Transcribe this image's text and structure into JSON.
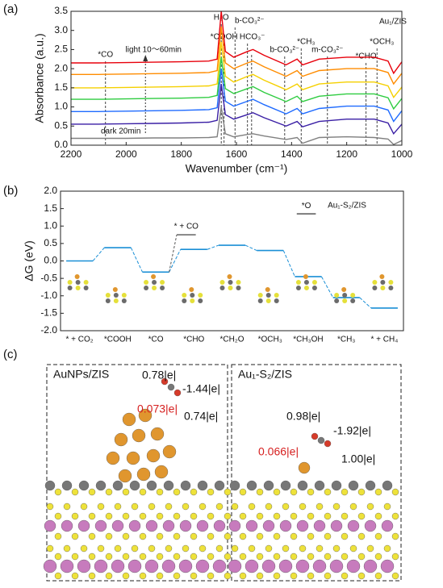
{
  "chart_data": [
    {
      "type": "line",
      "panel": "(a)",
      "x_label": "Wavenumber (cm⁻¹)",
      "y_label": "Absorbance (a.u.)",
      "xlim": [
        2200,
        1000
      ],
      "xticks": [
        2200,
        2000,
        1800,
        1600,
        1400,
        1200,
        1000
      ],
      "ylim": [
        0,
        3.5
      ],
      "yticks": [
        {
          "value": 0,
          "label": "0.0"
        },
        0.5,
        {
          "value": 1,
          "label": "1.0"
        },
        1.5,
        {
          "value": 2,
          "label": "2.0"
        },
        2.5,
        {
          "value": 3,
          "label": "3.0"
        },
        3.5
      ],
      "x": [
        2200,
        2100,
        2000,
        1900,
        1800,
        1700,
        1670,
        1655,
        1640,
        1610,
        1560,
        1540,
        1500,
        1420,
        1380,
        1360,
        1300,
        1200,
        1100,
        1050,
        1030,
        1000
      ],
      "series": [
        {
          "color": "#808080",
          "values": [
            0.18,
            0.18,
            0.18,
            0.19,
            0.19,
            0.2,
            0.22,
            1.0,
            0.3,
            0.22,
            0.28,
            0.3,
            0.24,
            0.15,
            0.2,
            0.05,
            0.2,
            0.22,
            0.2,
            0.16,
            0.02,
            0.12
          ]
        },
        {
          "color": "#3a1fa5",
          "values": [
            0.55,
            0.55,
            0.56,
            0.57,
            0.58,
            0.6,
            0.65,
            1.6,
            0.8,
            0.68,
            0.8,
            0.85,
            0.72,
            0.5,
            0.62,
            0.48,
            0.62,
            0.68,
            0.68,
            0.58,
            0.3,
            0.55
          ]
        },
        {
          "color": "#1f6bff",
          "values": [
            0.88,
            0.88,
            0.89,
            0.9,
            0.91,
            0.93,
            0.98,
            2.0,
            1.15,
            1.02,
            1.15,
            1.2,
            1.06,
            0.82,
            0.96,
            0.82,
            0.96,
            1.02,
            1.02,
            0.92,
            0.62,
            0.9
          ]
        },
        {
          "color": "#2ecc40",
          "values": [
            1.2,
            1.2,
            1.21,
            1.22,
            1.23,
            1.25,
            1.3,
            2.3,
            1.48,
            1.35,
            1.48,
            1.53,
            1.38,
            1.14,
            1.28,
            1.14,
            1.28,
            1.34,
            1.34,
            1.24,
            0.95,
            1.22
          ]
        },
        {
          "color": "#f5d000",
          "values": [
            1.5,
            1.5,
            1.51,
            1.52,
            1.53,
            1.55,
            1.6,
            2.7,
            1.8,
            1.65,
            1.8,
            1.85,
            1.7,
            1.45,
            1.6,
            1.45,
            1.6,
            1.65,
            1.65,
            1.55,
            1.25,
            1.52
          ]
        },
        {
          "color": "#ff8c00",
          "values": [
            1.85,
            1.85,
            1.86,
            1.87,
            1.88,
            1.9,
            1.95,
            3.1,
            2.15,
            2.0,
            2.15,
            2.2,
            2.05,
            1.8,
            1.95,
            1.8,
            1.95,
            2.0,
            2.0,
            1.9,
            1.6,
            1.88
          ]
        },
        {
          "color": "#e8000b",
          "values": [
            2.15,
            2.15,
            2.16,
            2.17,
            2.18,
            2.2,
            2.25,
            3.5,
            2.45,
            2.3,
            2.45,
            2.5,
            2.35,
            2.1,
            2.25,
            2.1,
            2.25,
            2.3,
            2.3,
            2.2,
            1.88,
            2.18
          ]
        }
      ],
      "markers": [
        {
          "label": "*CO",
          "x": 2075
        },
        {
          "label": "light 10～60min",
          "x": 1930
        },
        {
          "label": "H₂O",
          "x": 1655
        },
        {
          "label": "*COOH",
          "x": 1645
        },
        {
          "label": "b-CO₃²⁻",
          "x": 1605
        },
        {
          "label": "HCO₃⁻",
          "x": 1560
        },
        {
          "label": null,
          "x": 1545
        },
        {
          "label": "b-CO₃²⁻",
          "x": 1425
        },
        {
          "label": "*CH₃",
          "x": 1365
        },
        {
          "label": "m-CO₃²⁻",
          "x": 1270
        },
        {
          "label": "*CHO",
          "x": 1130
        },
        {
          "label": "*OCH₃",
          "x": 1090
        }
      ],
      "notes": {
        "dark": "dark 20min",
        "sample": "Au₁/ZIS"
      }
    },
    {
      "type": "step",
      "panel": "(b)",
      "y_label": "ΔG (eV)",
      "title": "Au₁-S₂/ZIS",
      "ylim": [
        -2,
        2
      ],
      "yticks": [
        {
          "value": 2,
          "label": "2.0"
        },
        1.5,
        {
          "value": 1,
          "label": "1.0"
        },
        0.5,
        {
          "value": 0,
          "label": "0.0"
        },
        -0.5,
        {
          "value": -1,
          "label": "-1.0"
        },
        -1.5,
        {
          "value": -2,
          "label": "-2.0"
        }
      ],
      "categories": [
        "* + CO₂",
        "*COOH",
        "*CO",
        "*CHO",
        "*CH₂O",
        "*OCH₃",
        "*CH₃OH",
        "*CH₃",
        "* + CH₄"
      ],
      "values": [
        0,
        0.38,
        -0.32,
        0.33,
        0.45,
        0.3,
        -0.45,
        -1.05,
        -1.35
      ],
      "color": "#1a8fd6",
      "side_levels": [
        {
          "label": "* + CO",
          "value": 0.75
        },
        {
          "label": "*O",
          "value": 1.35
        }
      ]
    }
  ],
  "panel_c": {
    "panel": "(c)",
    "left": {
      "title": "AuNPs/ZIS",
      "charges": [
        "0.78|e|",
        "-1.44|e|",
        "0.073|e|",
        "0.74|e|"
      ]
    },
    "right": {
      "title": "Au₁-S₂/ZIS",
      "charges": [
        "0.98|e|",
        "-1.92|e|",
        "0.066|e|",
        "1.00|e|"
      ]
    }
  }
}
